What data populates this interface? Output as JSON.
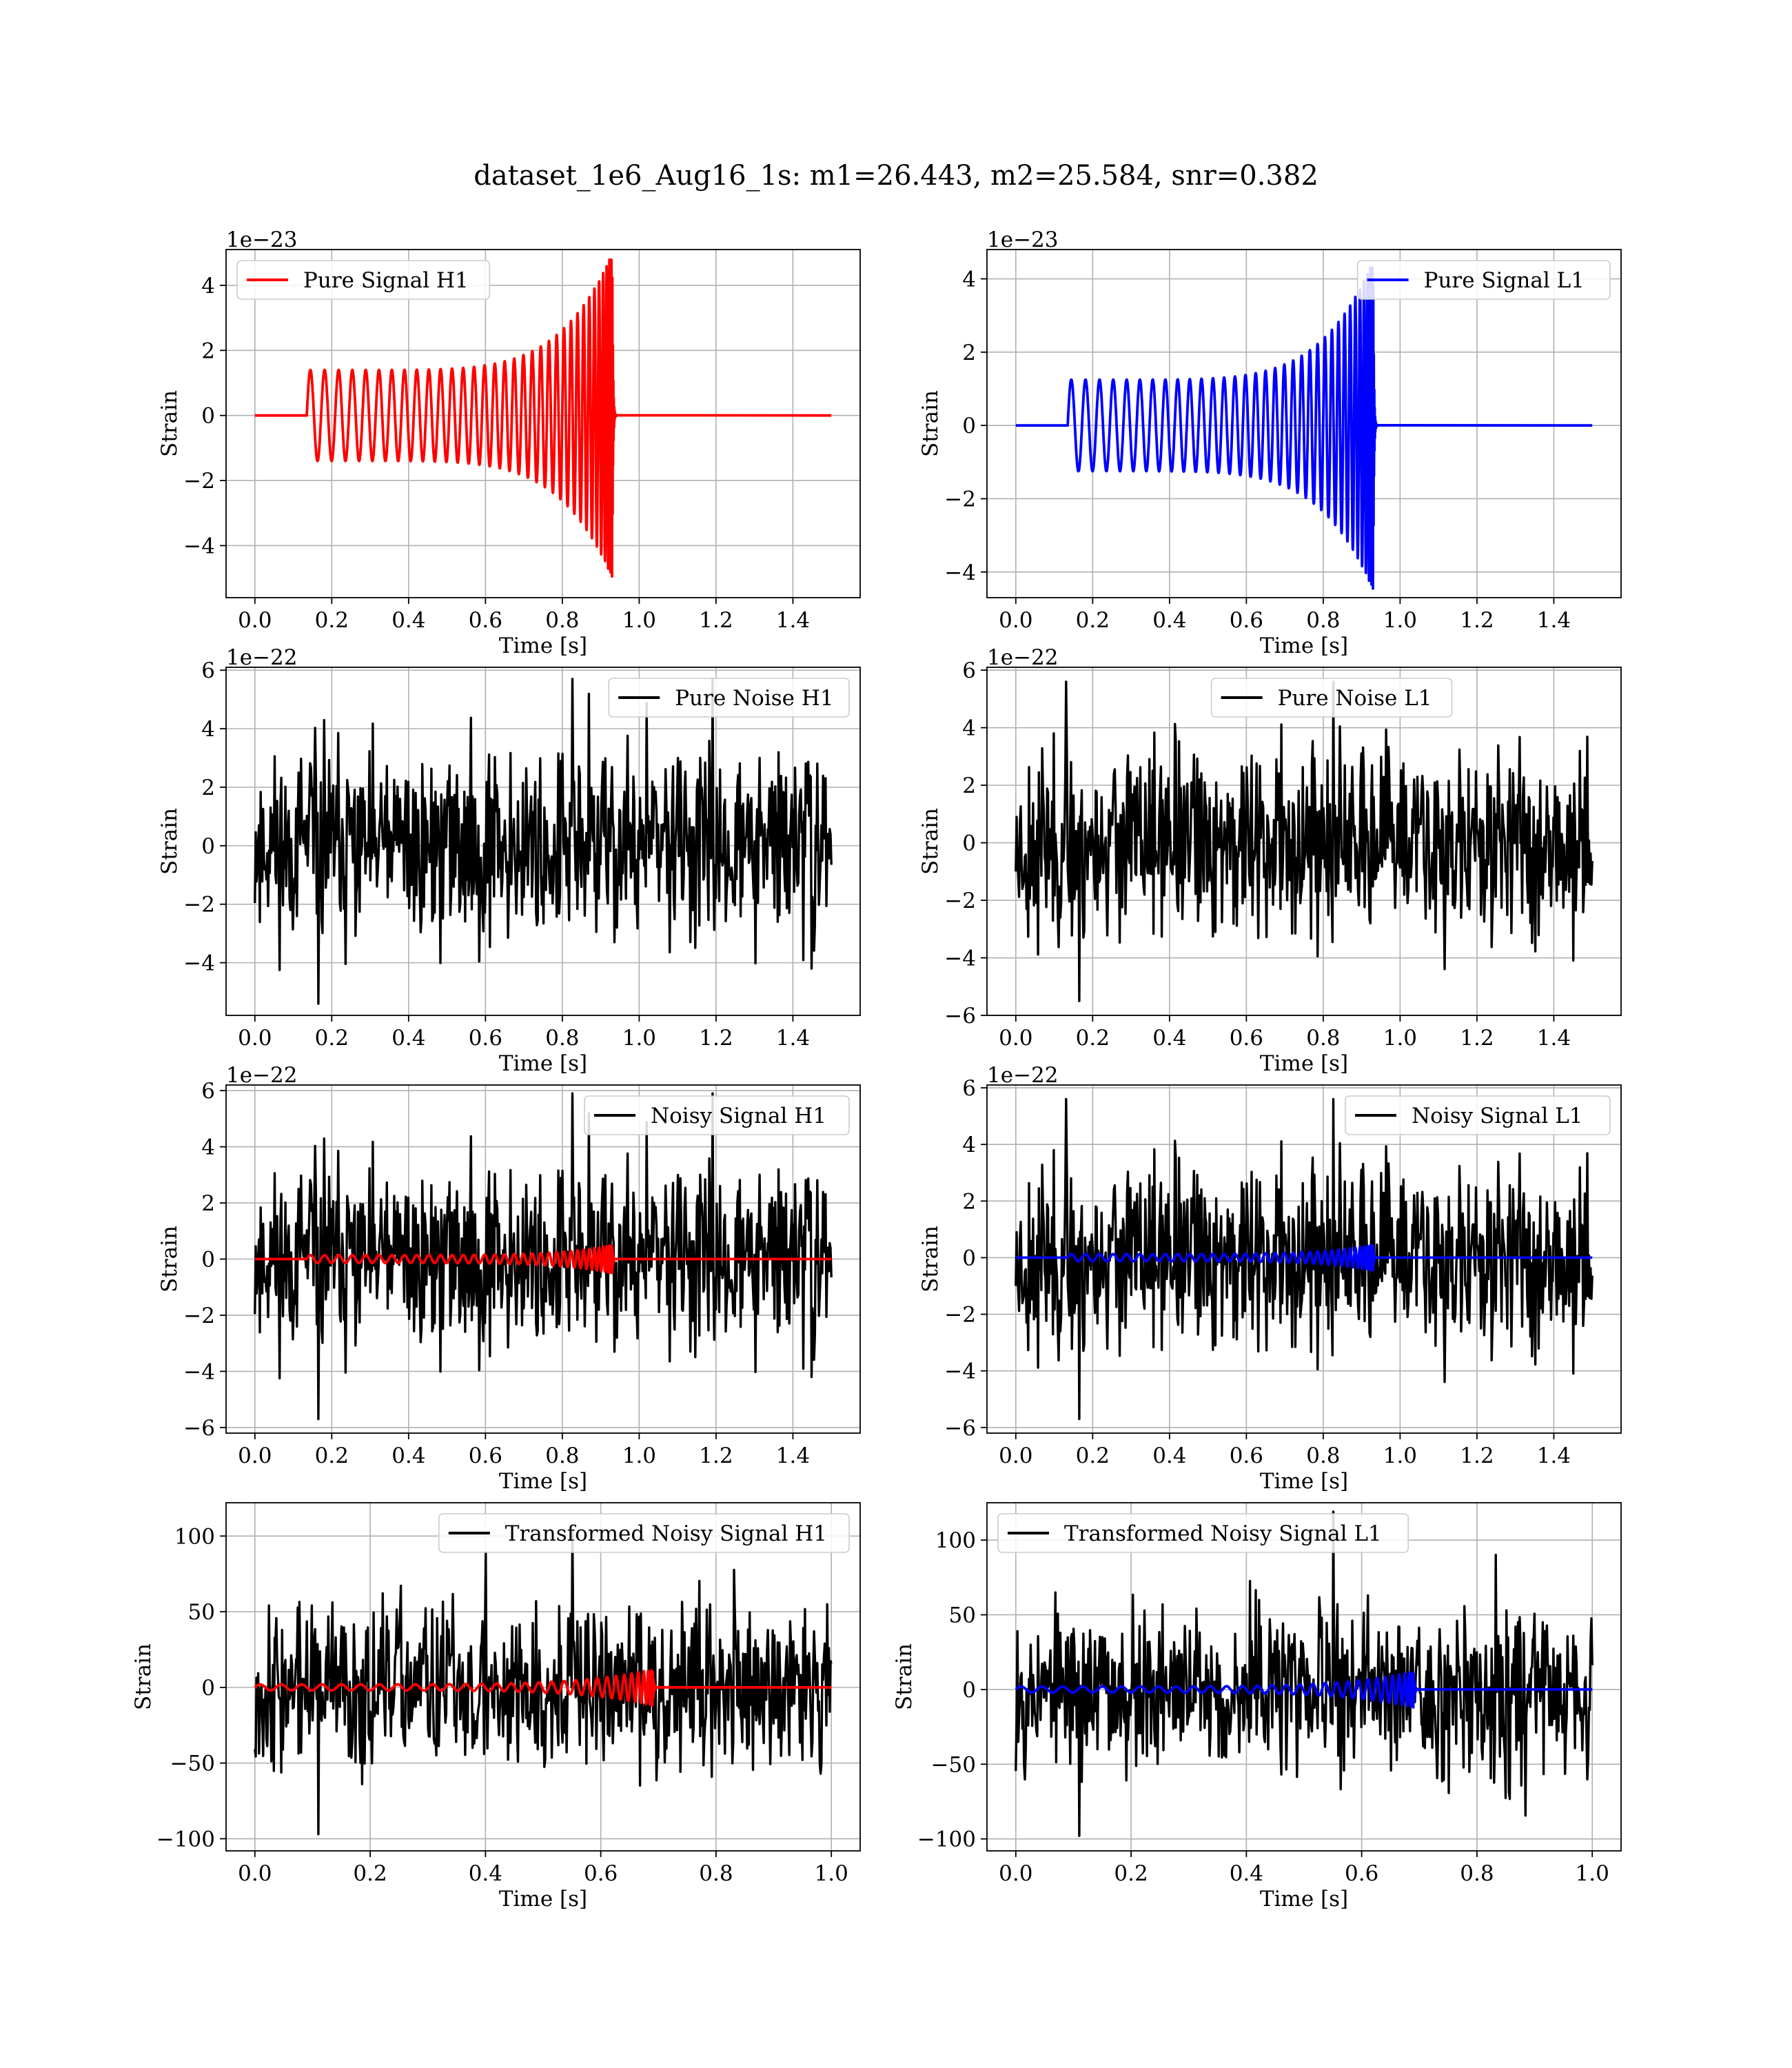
{
  "figure": {
    "title": "dataset_1e6_Aug16_1s: m1=26.443, m2=25.584, snr=0.382"
  },
  "colors": {
    "h1": "#ff0000",
    "l1": "#0000ff",
    "noise": "#000000"
  },
  "chart_data": [
    {
      "id": "pure-signal-h1",
      "type": "line",
      "xlabel": "Time [s]",
      "ylabel": "Strain",
      "offset_text": "1e−23",
      "xlim": [
        -0.075,
        1.575
      ],
      "ylim": [
        -5.6,
        5.1
      ],
      "xticks": [
        0,
        0.2,
        0.4,
        0.6,
        0.8,
        1.0,
        1.2,
        1.4
      ],
      "xtick_labels": [
        "0.0",
        "0.2",
        "0.4",
        "0.6",
        "0.8",
        "1.0",
        "1.2",
        "1.4"
      ],
      "yticks": [
        -4,
        -2,
        0,
        2,
        4
      ],
      "ytick_labels": [
        "−4",
        "−2",
        "0",
        "2",
        "4"
      ],
      "legend": {
        "position": "upper-left",
        "entries": [
          {
            "label": "Pure Signal H1",
            "color": "#ff0000"
          }
        ]
      },
      "series": [
        {
          "name": "Pure Signal H1",
          "color": "#ff0000",
          "kind": "chirp",
          "t_start": 0.135,
          "t_merge": 0.93,
          "t_end": 1.5,
          "amp_start": 1.4,
          "amp_peak": 5.0,
          "cycles": 34,
          "scale": 1
        }
      ]
    },
    {
      "id": "pure-signal-l1",
      "type": "line",
      "xlabel": "Time [s]",
      "ylabel": "Strain",
      "offset_text": "1e−23",
      "xlim": [
        -0.075,
        1.575
      ],
      "ylim": [
        -4.7,
        4.8
      ],
      "xticks": [
        0,
        0.2,
        0.4,
        0.6,
        0.8,
        1.0,
        1.2,
        1.4
      ],
      "xtick_labels": [
        "0.0",
        "0.2",
        "0.4",
        "0.6",
        "0.8",
        "1.0",
        "1.2",
        "1.4"
      ],
      "yticks": [
        -4,
        -2,
        0,
        2,
        4
      ],
      "ytick_labels": [
        "−4",
        "−2",
        "0",
        "2",
        "4"
      ],
      "legend": {
        "position": "upper-right",
        "entries": [
          {
            "label": "Pure Signal L1",
            "color": "#0000ff"
          }
        ]
      },
      "series": [
        {
          "name": "Pure Signal L1",
          "color": "#0000ff",
          "kind": "chirp",
          "t_start": 0.135,
          "t_merge": 0.93,
          "t_end": 1.5,
          "amp_start": 1.25,
          "amp_peak": 4.5,
          "cycles": 34,
          "scale": 1
        }
      ]
    },
    {
      "id": "pure-noise-h1",
      "type": "line",
      "xlabel": "Time [s]",
      "ylabel": "Strain",
      "offset_text": "1e−22",
      "xlim": [
        -0.075,
        1.575
      ],
      "ylim": [
        -5.8,
        6.1
      ],
      "xticks": [
        0,
        0.2,
        0.4,
        0.6,
        0.8,
        1.0,
        1.2,
        1.4
      ],
      "xtick_labels": [
        "0.0",
        "0.2",
        "0.4",
        "0.6",
        "0.8",
        "1.0",
        "1.2",
        "1.4"
      ],
      "yticks": [
        -4,
        -2,
        0,
        2,
        4,
        6
      ],
      "ytick_labels": [
        "−4",
        "−2",
        "0",
        "2",
        "4",
        "6"
      ],
      "legend": {
        "position": "upper-right",
        "entries": [
          {
            "label": "Pure Noise H1",
            "color": "#000000"
          }
        ]
      },
      "series": [
        {
          "name": "Pure Noise H1",
          "color": "#000000",
          "kind": "noise",
          "t_start": 0.0,
          "t_end": 1.5,
          "sigma": 1.55,
          "min": -5.4,
          "max": 5.7,
          "seed": 11
        }
      ]
    },
    {
      "id": "pure-noise-l1",
      "type": "line",
      "xlabel": "Time [s]",
      "ylabel": "Strain",
      "offset_text": "1e−22",
      "xlim": [
        -0.075,
        1.575
      ],
      "ylim": [
        -6.0,
        6.1
      ],
      "xticks": [
        0,
        0.2,
        0.4,
        0.6,
        0.8,
        1.0,
        1.2,
        1.4
      ],
      "xtick_labels": [
        "0.0",
        "0.2",
        "0.4",
        "0.6",
        "0.8",
        "1.0",
        "1.2",
        "1.4"
      ],
      "yticks": [
        -6,
        -4,
        -2,
        0,
        2,
        4,
        6
      ],
      "ytick_labels": [
        "−6",
        "−4",
        "−2",
        "0",
        "2",
        "4",
        "6"
      ],
      "legend": {
        "position": "upper-center",
        "entries": [
          {
            "label": "Pure Noise L1",
            "color": "#000000"
          }
        ]
      },
      "series": [
        {
          "name": "Pure Noise L1",
          "color": "#000000",
          "kind": "noise",
          "t_start": 0.0,
          "t_end": 1.5,
          "sigma": 1.55,
          "min": -5.5,
          "max": 5.6,
          "seed": 23
        }
      ]
    },
    {
      "id": "noisy-signal-h1",
      "type": "line",
      "xlabel": "Time [s]",
      "ylabel": "Strain",
      "offset_text": "1e−22",
      "xlim": [
        -0.075,
        1.575
      ],
      "ylim": [
        -6.2,
        6.2
      ],
      "xticks": [
        0,
        0.2,
        0.4,
        0.6,
        0.8,
        1.0,
        1.2,
        1.4
      ],
      "xtick_labels": [
        "0.0",
        "0.2",
        "0.4",
        "0.6",
        "0.8",
        "1.0",
        "1.2",
        "1.4"
      ],
      "yticks": [
        -6,
        -4,
        -2,
        0,
        2,
        4,
        6
      ],
      "ytick_labels": [
        "−6",
        "−4",
        "−2",
        "0",
        "2",
        "4",
        "6"
      ],
      "legend": {
        "position": "upper-right",
        "entries": [
          {
            "label": "Noisy Signal H1",
            "color": "#000000"
          }
        ]
      },
      "series": [
        {
          "name": "Noisy Signal H1",
          "color": "#000000",
          "kind": "noise",
          "t_start": 0.0,
          "t_end": 1.5,
          "sigma": 1.55,
          "min": -5.7,
          "max": 5.9,
          "seed": 11
        },
        {
          "color": "#ff0000",
          "kind": "chirp",
          "t_start": 0.135,
          "t_merge": 0.93,
          "t_end": 1.5,
          "amp_start": 1.4,
          "amp_peak": 5.0,
          "cycles": 34,
          "scale": 0.1
        }
      ]
    },
    {
      "id": "noisy-signal-l1",
      "type": "line",
      "xlabel": "Time [s]",
      "ylabel": "Strain",
      "offset_text": "1e−22",
      "xlim": [
        -0.075,
        1.575
      ],
      "ylim": [
        -6.2,
        6.1
      ],
      "xticks": [
        0,
        0.2,
        0.4,
        0.6,
        0.8,
        1.0,
        1.2,
        1.4
      ],
      "xtick_labels": [
        "0.0",
        "0.2",
        "0.4",
        "0.6",
        "0.8",
        "1.0",
        "1.2",
        "1.4"
      ],
      "yticks": [
        -6,
        -4,
        -2,
        0,
        2,
        4,
        6
      ],
      "ytick_labels": [
        "−6",
        "−4",
        "−2",
        "0",
        "2",
        "4",
        "6"
      ],
      "legend": {
        "position": "upper-right",
        "entries": [
          {
            "label": "Noisy Signal L1",
            "color": "#000000"
          }
        ]
      },
      "series": [
        {
          "name": "Noisy Signal L1",
          "color": "#000000",
          "kind": "noise",
          "t_start": 0.0,
          "t_end": 1.5,
          "sigma": 1.55,
          "min": -5.7,
          "max": 5.6,
          "seed": 23
        },
        {
          "color": "#0000ff",
          "kind": "chirp",
          "t_start": 0.135,
          "t_merge": 0.93,
          "t_end": 1.5,
          "amp_start": 1.25,
          "amp_peak": 4.5,
          "cycles": 34,
          "scale": 0.1
        }
      ]
    },
    {
      "id": "transformed-noisy-signal-h1",
      "type": "line",
      "xlabel": "Time [s]",
      "ylabel": "Strain",
      "offset_text": "",
      "xlim": [
        -0.05,
        1.05
      ],
      "ylim": [
        -108,
        122
      ],
      "xticks": [
        0,
        0.2,
        0.4,
        0.6,
        0.8,
        1.0
      ],
      "xtick_labels": [
        "0.0",
        "0.2",
        "0.4",
        "0.6",
        "0.8",
        "1.0"
      ],
      "yticks": [
        -100,
        -50,
        0,
        50,
        100
      ],
      "ytick_labels": [
        "−100",
        "−50",
        "0",
        "50",
        "100"
      ],
      "legend": {
        "position": "upper-right",
        "entries": [
          {
            "label": "Transformed Noisy Signal H1",
            "color": "#000000"
          }
        ]
      },
      "series": [
        {
          "name": "Transformed Noisy Signal H1",
          "color": "#000000",
          "kind": "noise",
          "t_start": 0.0,
          "t_end": 1.0,
          "sigma": 26,
          "min": -97,
          "max": 103,
          "seed": 37
        },
        {
          "color": "#ff0000",
          "kind": "chirp",
          "t_start": 0.0,
          "t_merge": 0.69,
          "t_end": 1.0,
          "amp_start": 2.0,
          "amp_peak": 12.0,
          "cycles": 30,
          "scale": 1
        }
      ]
    },
    {
      "id": "transformed-noisy-signal-l1",
      "type": "line",
      "xlabel": "Time [s]",
      "ylabel": "Strain",
      "offset_text": "",
      "xlim": [
        -0.05,
        1.05
      ],
      "ylim": [
        -108,
        125
      ],
      "xticks": [
        0,
        0.2,
        0.4,
        0.6,
        0.8,
        1.0
      ],
      "xtick_labels": [
        "0.0",
        "0.2",
        "0.4",
        "0.6",
        "0.8",
        "1.0"
      ],
      "yticks": [
        -100,
        -50,
        0,
        50,
        100
      ],
      "ytick_labels": [
        "−100",
        "−50",
        "0",
        "50",
        "100"
      ],
      "legend": {
        "position": "upper-left",
        "entries": [
          {
            "label": "Transformed Noisy Signal L1",
            "color": "#000000"
          }
        ]
      },
      "series": [
        {
          "name": "Transformed Noisy Signal L1",
          "color": "#000000",
          "kind": "noise",
          "t_start": 0.0,
          "t_end": 1.0,
          "sigma": 26,
          "min": -98,
          "max": 119,
          "seed": 53
        },
        {
          "color": "#0000ff",
          "kind": "chirp",
          "t_start": 0.0,
          "t_merge": 0.69,
          "t_end": 1.0,
          "amp_start": 2.0,
          "amp_peak": 12.0,
          "cycles": 30,
          "scale": 1
        }
      ]
    }
  ]
}
